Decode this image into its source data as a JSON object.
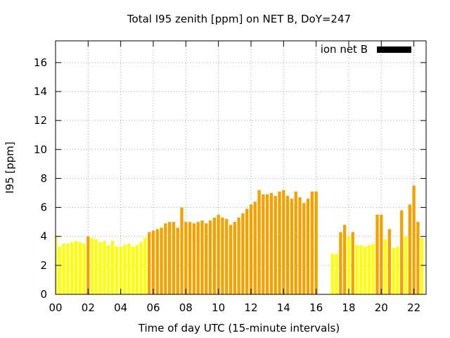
{
  "chart_data": {
    "type": "bar",
    "title": "Total I95 zenith [ppm] on NET B, DoY=247",
    "xlabel": "Time of day UTC (15-minute intervals)",
    "ylabel": "I95 [ppm]",
    "xlim": [
      0,
      22.75
    ],
    "ylim": [
      0,
      17.5
    ],
    "x_ticks": [
      "00",
      "02",
      "04",
      "06",
      "08",
      "10",
      "12",
      "14",
      "16",
      "18",
      "20",
      "22"
    ],
    "y_ticks": [
      "0",
      "2",
      "4",
      "6",
      "8",
      "10",
      "12",
      "14",
      "16"
    ],
    "grid": true,
    "legend_position": "top-right",
    "legend": [
      {
        "name": "ion net B",
        "color": "#000000"
      }
    ],
    "colors": {
      "low": "#ffff00",
      "mid": "#f5a200"
    },
    "bar_interval_hours": 0.25,
    "values": [
      4.0,
      3.3,
      3.5,
      3.5,
      3.6,
      3.7,
      3.6,
      3.5,
      4.0,
      3.9,
      3.8,
      3.6,
      3.7,
      3.4,
      3.7,
      3.3,
      3.3,
      3.4,
      3.5,
      3.3,
      3.4,
      3.6,
      3.9,
      4.3,
      4.4,
      4.5,
      4.6,
      4.9,
      5.0,
      5.0,
      4.6,
      6.0,
      5.0,
      5.0,
      4.9,
      5.0,
      5.1,
      4.9,
      5.1,
      5.3,
      5.5,
      5.3,
      5.2,
      4.8,
      5.0,
      5.3,
      5.6,
      5.9,
      6.2,
      6.4,
      7.2,
      6.9,
      6.9,
      7.0,
      6.8,
      7.1,
      7.2,
      6.8,
      6.6,
      7.1,
      6.7,
      6.3,
      6.6,
      7.1,
      7.1,
      null,
      null,
      null,
      2.8,
      2.8,
      4.3,
      4.8,
      4.0,
      4.3,
      3.4,
      3.4,
      3.3,
      3.4,
      3.5,
      5.5,
      5.5,
      3.8,
      4.5,
      3.2,
      3.3,
      5.8,
      4.0,
      6.2,
      7.5,
      5.0,
      3.9
    ],
    "bar_colors": [
      "low",
      "low",
      "low",
      "low",
      "low",
      "low",
      "low",
      "low",
      "mid",
      "low",
      "low",
      "low",
      "low",
      "low",
      "low",
      "low",
      "low",
      "low",
      "low",
      "low",
      "low",
      "low",
      "low",
      "mid",
      "mid",
      "mid",
      "mid",
      "mid",
      "mid",
      "mid",
      "mid",
      "mid",
      "mid",
      "mid",
      "mid",
      "mid",
      "mid",
      "mid",
      "mid",
      "mid",
      "mid",
      "mid",
      "mid",
      "mid",
      "mid",
      "mid",
      "mid",
      "mid",
      "mid",
      "mid",
      "mid",
      "mid",
      "mid",
      "mid",
      "mid",
      "mid",
      "mid",
      "mid",
      "mid",
      "mid",
      "mid",
      "mid",
      "mid",
      "mid",
      "mid",
      "low",
      "low",
      "low",
      "low",
      "low",
      "mid",
      "mid",
      "low",
      "mid",
      "low",
      "low",
      "low",
      "low",
      "low",
      "mid",
      "mid",
      "low",
      "mid",
      "low",
      "low",
      "mid",
      "low",
      "mid",
      "mid",
      "mid",
      "low"
    ]
  }
}
